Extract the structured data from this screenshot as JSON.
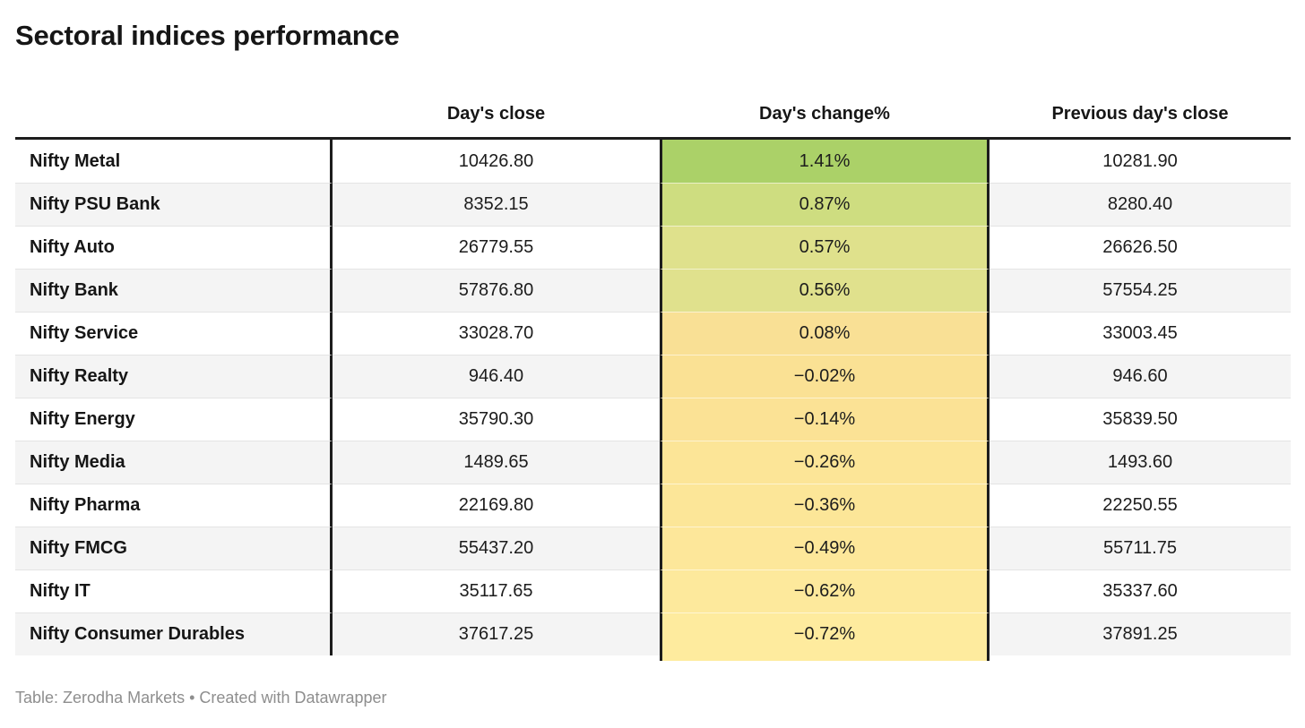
{
  "title": "Sectoral indices performance",
  "table": {
    "columns": {
      "name": "",
      "close": "Day's close",
      "change": "Day's change%",
      "prev_close": "Previous day's close"
    },
    "rows": [
      {
        "name": "Nifty Metal",
        "close": "10426.80",
        "change": "1.41%",
        "prev_close": "10281.90",
        "change_color": "#abd168"
      },
      {
        "name": "Nifty PSU Bank",
        "close": "8352.15",
        "change": "0.87%",
        "prev_close": "8280.40",
        "change_color": "#cedd80"
      },
      {
        "name": "Nifty Auto",
        "close": "26779.55",
        "change": "0.57%",
        "prev_close": "26626.50",
        "change_color": "#dfe18c"
      },
      {
        "name": "Nifty Bank",
        "close": "57876.80",
        "change": "0.56%",
        "prev_close": "57554.25",
        "change_color": "#e0e18d"
      },
      {
        "name": "Nifty Service",
        "close": "33028.70",
        "change": "0.08%",
        "prev_close": "33003.45",
        "change_color": "#f9e095"
      },
      {
        "name": "Nifty Realty",
        "close": "946.40",
        "change": "−0.02%",
        "prev_close": "946.60",
        "change_color": "#fae194"
      },
      {
        "name": "Nifty Energy",
        "close": "35790.30",
        "change": "−0.14%",
        "prev_close": "35839.50",
        "change_color": "#fbe295"
      },
      {
        "name": "Nifty Media",
        "close": "1489.65",
        "change": "−0.26%",
        "prev_close": "1493.60",
        "change_color": "#fce597"
      },
      {
        "name": "Nifty Pharma",
        "close": "22169.80",
        "change": "−0.36%",
        "prev_close": "22250.55",
        "change_color": "#fce698"
      },
      {
        "name": "Nifty FMCG",
        "close": "55437.20",
        "change": "−0.49%",
        "prev_close": "55711.75",
        "change_color": "#fde79a"
      },
      {
        "name": "Nifty IT",
        "close": "35117.65",
        "change": "−0.62%",
        "prev_close": "35337.60",
        "change_color": "#fde99c"
      },
      {
        "name": "Nifty Consumer Durables",
        "close": "37617.25",
        "change": "−0.72%",
        "prev_close": "37891.25",
        "change_color": "#feeb9e"
      }
    ]
  },
  "footer": {
    "prefix": "Table: ",
    "source": "Zerodha Markets",
    "separator": " • Created with ",
    "attribution": "Datawrapper"
  },
  "colors": {
    "border_dark": "#1d1d1d",
    "row_stripe": "#f4f4f4",
    "row_separator": "#e4e4e4",
    "footer_text": "#8e8e8e",
    "heat_positive_max": "#abd168",
    "heat_zero": "#f9e095",
    "heat_negative_min": "#feeb9e"
  },
  "chart_data": {
    "type": "table",
    "title": "Sectoral indices performance",
    "columns": [
      "",
      "Day's close",
      "Day's change%",
      "Previous day's close"
    ],
    "rows": [
      [
        "Nifty Metal",
        10426.8,
        1.41,
        10281.9
      ],
      [
        "Nifty PSU Bank",
        8352.15,
        0.87,
        8280.4
      ],
      [
        "Nifty Auto",
        26779.55,
        0.57,
        26626.5
      ],
      [
        "Nifty Bank",
        57876.8,
        0.56,
        57554.25
      ],
      [
        "Nifty Service",
        33028.7,
        0.08,
        33003.45
      ],
      [
        "Nifty Realty",
        946.4,
        -0.02,
        946.6
      ],
      [
        "Nifty Energy",
        35790.3,
        -0.14,
        35839.5
      ],
      [
        "Nifty Media",
        1489.65,
        -0.26,
        1493.6
      ],
      [
        "Nifty Pharma",
        22169.8,
        -0.36,
        22250.55
      ],
      [
        "Nifty FMCG",
        55437.2,
        -0.49,
        55711.75
      ],
      [
        "Nifty IT",
        35117.65,
        -0.62,
        35337.6
      ],
      [
        "Nifty Consumer Durables",
        37617.25,
        -0.72,
        37891.25
      ]
    ],
    "heatmap_column": "Day's change%",
    "heatmap_scale": "green (high) to yellow (low)",
    "sort": "Day's change% descending",
    "source": "Zerodha Markets",
    "attribution": "Created with Datawrapper"
  }
}
